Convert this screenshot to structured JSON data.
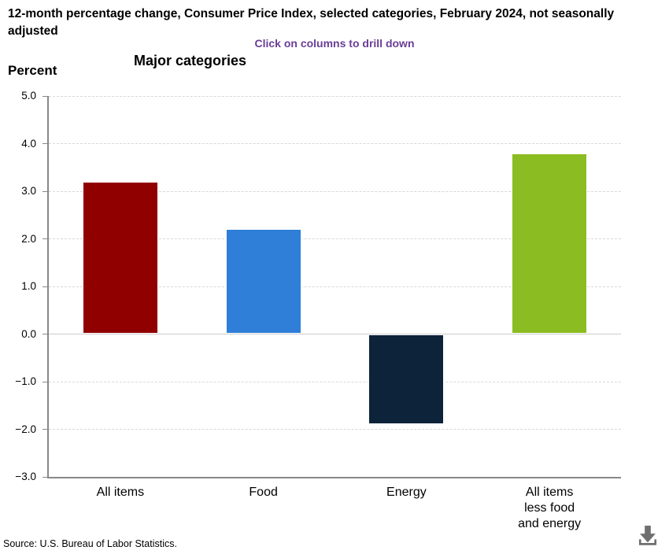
{
  "header": {
    "title": "12-month percentage change, Consumer Price Index, selected categories, February 2024, not seasonally adjusted",
    "subtitle": "Click on columns to drill down"
  },
  "chart_data": {
    "type": "bar",
    "title": "Major categories",
    "ylabel": "Percent",
    "ylim": [
      -3.0,
      5.0
    ],
    "y_ticks": [
      5.0,
      4.0,
      3.0,
      2.0,
      1.0,
      0.0,
      -1.0,
      -2.0,
      -3.0
    ],
    "y_tick_labels": [
      "5.0",
      "4.0",
      "3.0",
      "2.0",
      "1.0",
      "0.0",
      "−1.0",
      "−2.0",
      "−3.0"
    ],
    "grid": "horizontal-dashed",
    "legend": "none",
    "categories": [
      "All items",
      "Food",
      "Energy",
      "All items less food and energy"
    ],
    "category_display": [
      "All items",
      "Food",
      "Energy",
      "All items\nless food\nand energy"
    ],
    "values": [
      3.2,
      2.2,
      -1.9,
      3.8
    ],
    "bar_colors": [
      "#910000",
      "#2f7ed8",
      "#0d233a",
      "#8bbc21"
    ]
  },
  "footer": {
    "source": "Source: U.S. Bureau of Labor Statistics."
  },
  "icons": {
    "download": "download-icon"
  },
  "colors": {
    "subtitle": "#6a3d96",
    "grid": "#d8d8d8",
    "zero_line": "#cccccc",
    "axis": "#888888",
    "download_icon": "#6f6f6f"
  }
}
